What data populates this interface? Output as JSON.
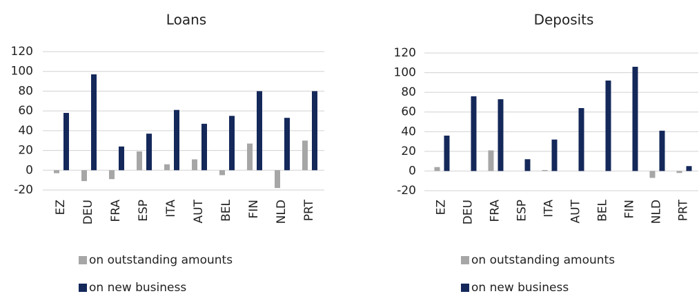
{
  "chart_data": [
    {
      "type": "bar",
      "title": "Loans",
      "categories": [
        "EZ",
        "DEU",
        "FRA",
        "ESP",
        "ITA",
        "AUT",
        "BEL",
        "FIN",
        "NLD",
        "PRT"
      ],
      "series": [
        {
          "name": "on outstanding amounts",
          "color": "#a6a6a6",
          "values": [
            -3,
            -11,
            -9,
            19,
            6,
            11,
            -5,
            27,
            -18,
            30
          ]
        },
        {
          "name": "on new business",
          "color": "#14285a",
          "values": [
            58,
            97,
            24,
            37,
            61,
            47,
            55,
            80,
            53,
            80
          ]
        }
      ],
      "ylim": [
        -20,
        120
      ],
      "yticks": [
        -20,
        0,
        20,
        40,
        60,
        80,
        100,
        120
      ],
      "grid": true,
      "legend": "bottom"
    },
    {
      "type": "bar",
      "title": "Deposits",
      "categories": [
        "EZ",
        "DEU",
        "FRA",
        "ESP",
        "ITA",
        "AUT",
        "BEL",
        "FIN",
        "NLD",
        "PRT"
      ],
      "series": [
        {
          "name": "on outstanding amounts",
          "color": "#a6a6a6",
          "values": [
            4,
            0,
            21,
            0,
            1,
            0,
            0,
            0,
            -7,
            -2
          ]
        },
        {
          "name": "on new business",
          "color": "#14285a",
          "values": [
            36,
            76,
            73,
            12,
            32,
            64,
            92,
            106,
            41,
            5
          ]
        }
      ],
      "ylim": [
        -20,
        120
      ],
      "yticks": [
        -20,
        0,
        20,
        40,
        60,
        80,
        100,
        120
      ],
      "grid": true,
      "legend": "bottom"
    }
  ]
}
